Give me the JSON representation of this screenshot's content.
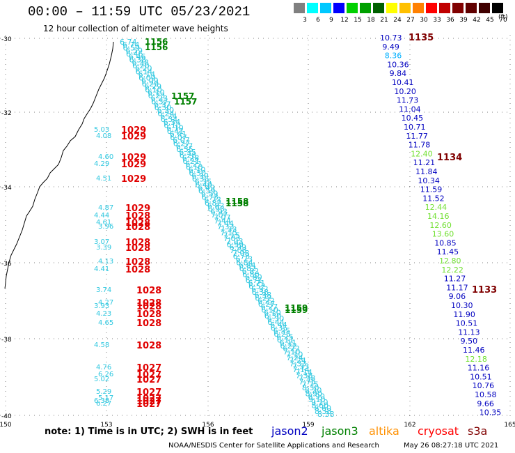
{
  "title": "00:00 – 11:59 UTC 05/23/2021",
  "subtitle": "12 hour collection of altimeter wave heights",
  "legend": {
    "labels": [
      "3",
      "6",
      "9",
      "12",
      "15",
      "18",
      "21",
      "24",
      "27",
      "30",
      "33",
      "36",
      "39",
      "42",
      "45",
      "70"
    ],
    "colors": [
      "#808080",
      "#00ffff",
      "#00c8ff",
      "#0000ff",
      "#00d000",
      "#00a000",
      "#006000",
      "#ffff00",
      "#ffc000",
      "#ff8000",
      "#ff0000",
      "#c00000",
      "#800000",
      "#600000",
      "#400000",
      "#000000"
    ],
    "unit": "(ft)"
  },
  "axes": {
    "x_ticks": [
      "150",
      "153",
      "156",
      "159",
      "162",
      "165"
    ],
    "y_ticks": [
      "-30",
      "-32",
      "-34",
      "-36",
      "-38",
      "-40"
    ]
  },
  "tracks": [
    {
      "satellite": "cryosat",
      "color": "#ff0000",
      "observations": [
        {
          "swh": "5.03",
          "time": "1029"
        },
        {
          "swh": "4.08",
          "time": "1029"
        },
        {
          "swh": "4.60",
          "time": "1029"
        },
        {
          "swh": "4.29",
          "time": "1029"
        },
        {
          "swh": "4.51",
          "time": "1029"
        },
        {
          "swh": "4.87",
          "time": "1029"
        },
        {
          "swh": "4.44",
          "time": "1028"
        },
        {
          "swh": "4.61",
          "time": "1028"
        },
        {
          "swh": "3.96",
          "time": "1028"
        },
        {
          "swh": "3.07",
          "time": "1028"
        },
        {
          "swh": "3.39",
          "time": "1028"
        },
        {
          "swh": "4.13",
          "time": "1028"
        },
        {
          "swh": "4.41",
          "time": "1028"
        },
        {
          "swh": "3.74",
          "time": "1028"
        },
        {
          "swh": "4.27",
          "time": "1028"
        },
        {
          "swh": "3.93",
          "time": "1028"
        },
        {
          "swh": "4.23",
          "time": "1028"
        },
        {
          "swh": "4.65",
          "time": "1028"
        },
        {
          "swh": "4.58",
          "time": "1028"
        },
        {
          "swh": "4.76",
          "time": "1027"
        },
        {
          "swh": "6.26",
          "time": "1027"
        },
        {
          "swh": "5.02",
          "time": "1027"
        },
        {
          "swh": "5.29",
          "time": "1027"
        },
        {
          "swh": "5.17",
          "time": "1027"
        },
        {
          "swh": "6.38",
          "time": "1027"
        },
        {
          "swh": "6.27",
          "time": "1027"
        }
      ]
    },
    {
      "satellite": "jason3",
      "color": "#008000",
      "times": [
        "1156",
        "1156",
        "1157",
        "1157",
        "1158",
        "1158",
        "1159",
        "1159"
      ]
    },
    {
      "satellite": "s3a",
      "color": "#800000",
      "times": [
        "1135",
        "1134",
        "1133"
      ]
    },
    {
      "satellite": "jason2",
      "swh_values": [
        "10.73",
        "9.49",
        "8.36",
        "10.36",
        "9.84",
        "10.41",
        "10.20",
        "11.73",
        "11.04",
        "10.45",
        "10.71",
        "11.77",
        "11.78",
        "12.40",
        "11.21",
        "11.84",
        "10.34",
        "11.59",
        "11.52",
        "12.44",
        "14.16",
        "12.60",
        "13.60",
        "10.85",
        "11.45",
        "12.80",
        "12.22",
        "11.27",
        "11.17",
        "9.06",
        "10.30",
        "11.90",
        "10.51",
        "11.13",
        "9.50",
        "11.46",
        "12.18",
        "11.16",
        "10.51",
        "10.76",
        "10.58",
        "9.66",
        "10.35"
      ]
    },
    {
      "satellite": "s3a_diag",
      "swh_values": [
        "6.74",
        "6.59",
        "6.46",
        "6.38",
        "6.20",
        "6.14",
        "6.09",
        "6.29",
        "6.10",
        "6.23",
        "6.37",
        "6.30",
        "6.24",
        "6.34",
        "6.10",
        "6.41",
        "6.07",
        "6.27",
        "6.35",
        "6.28",
        "6.21",
        "6.10",
        "6.30",
        "6.35",
        "6.49",
        "6.59",
        "6.73",
        "6.82",
        "6.93",
        "7.07",
        "7.44",
        "7.33",
        "7.15",
        "7.03",
        "6.99",
        "7.08",
        "6.73",
        "6.84",
        "6.82",
        "6.80",
        "6.71",
        "6.52",
        "6.38",
        "6.22",
        "6.27",
        "6.10",
        "6.30",
        "6.44",
        "6.35",
        "6.25",
        "6.11",
        "6.22",
        "7.10",
        "7.24",
        "7.33",
        "7.14",
        "7.38",
        "7.75",
        "8.30",
        "8.90",
        "9.10",
        "8.60",
        "8.38"
      ]
    }
  ],
  "satellites": [
    {
      "name": "jason2",
      "color": "#0000c0"
    },
    {
      "name": "jason3",
      "color": "#008000"
    },
    {
      "name": "altika",
      "color": "#ff9000"
    },
    {
      "name": "cryosat",
      "color": "#ff0000"
    },
    {
      "name": "s3a",
      "color": "#800000"
    }
  ],
  "note": "note:  1) Time is in UTC; 2) SWH is in feet",
  "credit": "NOAA/NESDIS Center for Satellite Applications and Research",
  "timestamp": "May 26 08:27:18 UTC 2021"
}
